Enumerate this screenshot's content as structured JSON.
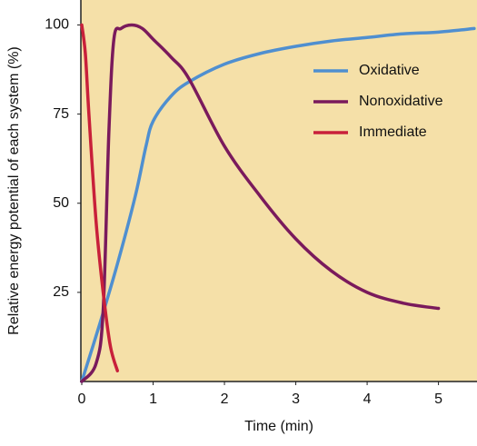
{
  "chart_data": {
    "type": "line",
    "xlabel": "Time (min)",
    "ylabel": "Relative energy potential of each system (%)",
    "xlim": [
      0,
      5.54
    ],
    "ylim": [
      0,
      107
    ],
    "xticks": [
      0,
      1,
      2,
      3,
      4,
      5
    ],
    "yticks": [
      25,
      50,
      75,
      100
    ],
    "legend": "upper right",
    "series": [
      {
        "name": "Oxidative",
        "color": "#4f8fd0",
        "x": [
          0,
          0.25,
          0.5,
          0.75,
          0.9,
          1,
          1.25,
          1.5,
          2,
          2.5,
          3,
          3.5,
          4,
          4.5,
          5,
          5.5
        ],
        "values": [
          0,
          16,
          33,
          52,
          66,
          73,
          80,
          84,
          89,
          92,
          94,
          95.5,
          96.5,
          97.5,
          98,
          99
        ]
      },
      {
        "name": "Nonoxidative",
        "color": "#7a1a5c",
        "x": [
          0,
          0.2,
          0.3,
          0.38,
          0.45,
          0.55,
          0.7,
          0.85,
          1,
          1.25,
          1.5,
          2,
          2.5,
          3,
          3.5,
          4,
          4.5,
          5
        ],
        "values": [
          0,
          5,
          20,
          70,
          96,
          99,
          100,
          99,
          96,
          91,
          85,
          66,
          52,
          40,
          31,
          25,
          22,
          20.5
        ]
      },
      {
        "name": "Immediate",
        "color": "#c8203a",
        "x": [
          0,
          0.05,
          0.1,
          0.2,
          0.3,
          0.4,
          0.5
        ],
        "values": [
          100,
          92,
          75,
          45,
          25,
          10,
          3
        ]
      }
    ]
  }
}
